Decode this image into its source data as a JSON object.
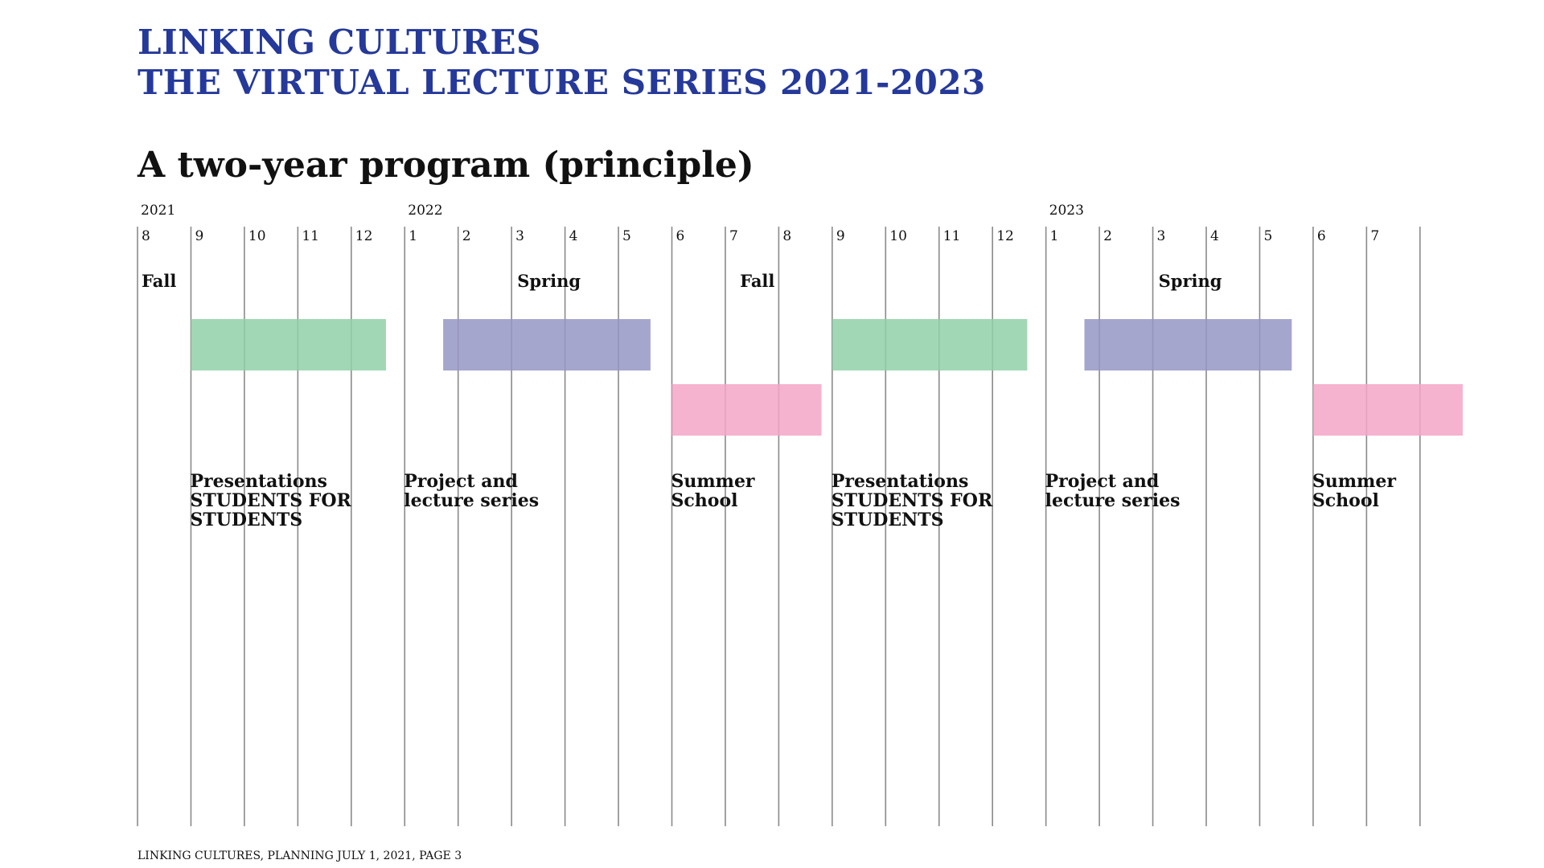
{
  "header": {
    "title_line1": "LINKING CULTURES",
    "title_line2": "THE VIRTUAL LECTURE SERIES 2021-2023",
    "subtitle": "A two-year program (principle)"
  },
  "footer": {
    "text": "LINKING CULTURES, PLANNING JULY 1, 2021, PAGE 3"
  },
  "colors": {
    "title": "#25399a",
    "presentations": "#90d0a8",
    "project_lecture": "#9597c4",
    "summer_school": "#f3a6c8",
    "gridline": "#8a8a8a"
  },
  "timeline": {
    "months": [
      "8",
      "9",
      "10",
      "11",
      "12",
      "1",
      "2",
      "3",
      "4",
      "5",
      "6",
      "7",
      "8",
      "9",
      "10",
      "11",
      "12",
      "1",
      "2",
      "3",
      "4",
      "5",
      "6",
      "7"
    ],
    "years": [
      {
        "label": "2021",
        "month_index": 0
      },
      {
        "label": "2022",
        "month_index": 5
      },
      {
        "label": "2023",
        "month_index": 17
      }
    ],
    "seasons": [
      {
        "label": "Fall",
        "month_index": 0,
        "align": "start"
      },
      {
        "label": "Spring",
        "month_index": 7.7,
        "align": "middle"
      },
      {
        "label": "Fall",
        "month_index": 12,
        "align": "end"
      },
      {
        "label": "Spring",
        "month_index": 19.7,
        "align": "middle"
      }
    ],
    "activities": [
      {
        "name": "Presentations STUDENTS FOR STUDENTS",
        "lines": [
          "Presentations",
          "STUDENTS FOR",
          "STUDENTS"
        ],
        "start": 1,
        "end": 4.65,
        "row": 0,
        "color": "#90d0a8"
      },
      {
        "name": "Project and lecture series",
        "lines": [
          "Project and",
          "lecture series"
        ],
        "start": 5.72,
        "end": 9.6,
        "row": 0,
        "color": "#9597c4"
      },
      {
        "name": "Summer School",
        "lines": [
          "Summer",
          "School"
        ],
        "start": 10,
        "end": 12.8,
        "row": 1,
        "color": "#f3a6c8"
      },
      {
        "name": "Presentations STUDENTS FOR STUDENTS",
        "lines": [
          "Presentations",
          "STUDENTS FOR",
          "STUDENTS"
        ],
        "start": 13,
        "end": 16.65,
        "row": 0,
        "color": "#90d0a8"
      },
      {
        "name": "Project and lecture series",
        "lines": [
          "Project and",
          "lecture series"
        ],
        "start": 17.72,
        "end": 21.6,
        "row": 0,
        "color": "#9597c4"
      },
      {
        "name": "Summer School",
        "lines": [
          "Summer",
          "School"
        ],
        "start": 22,
        "end": 24.8,
        "row": 1,
        "color": "#f3a6c8"
      }
    ]
  }
}
